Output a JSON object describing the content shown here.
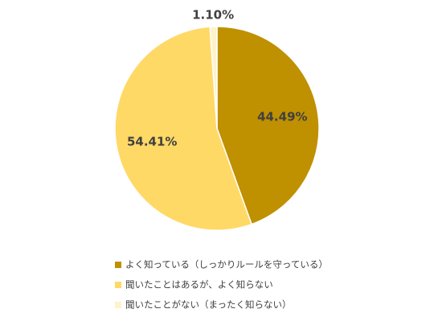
{
  "chart_data": {
    "type": "pie",
    "categories": [
      "よく知っている（しっかりルールを守っている）",
      "聞いたことはあるが、よく知らない",
      "聞いたことがない（まったく知らない）"
    ],
    "values": [
      44.49,
      54.41,
      1.1
    ],
    "value_labels": [
      "44.49%",
      "54.41%",
      "1.10%"
    ],
    "colors": [
      "#bf9000",
      "#ffd966",
      "#fff2cc"
    ]
  }
}
